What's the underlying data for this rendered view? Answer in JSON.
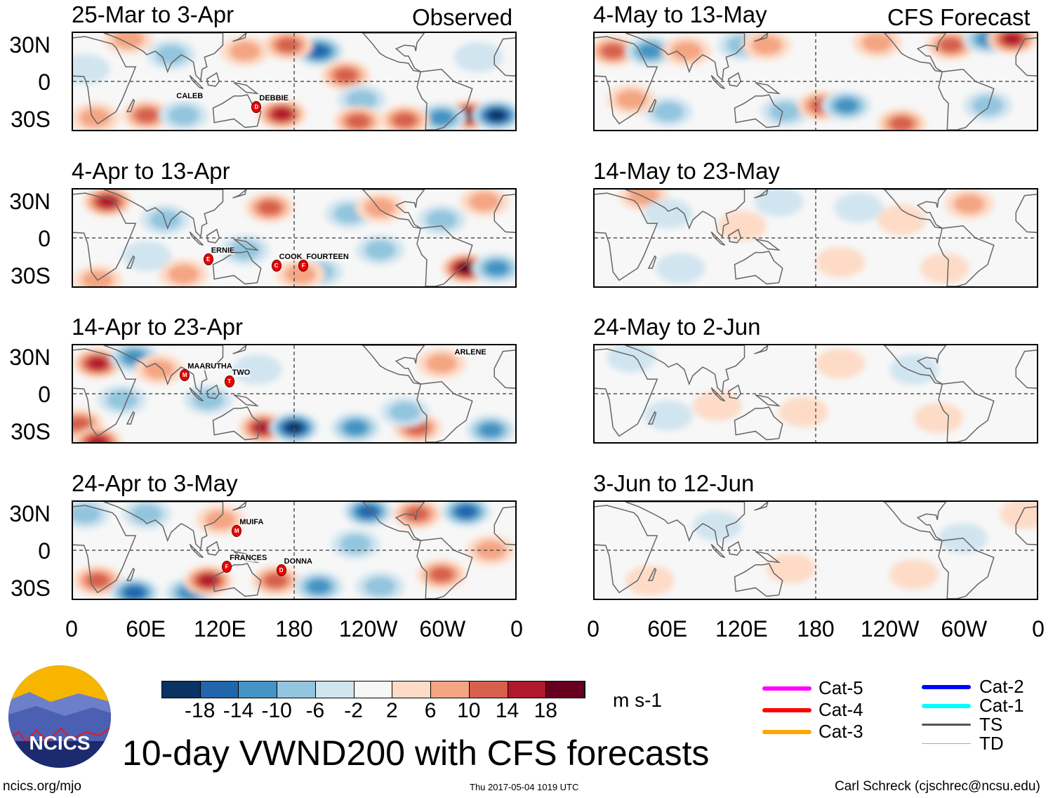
{
  "corner_left": "Observed",
  "corner_right": "CFS Forecast",
  "lat_labels": [
    "30N",
    "0",
    "30S"
  ],
  "lon_labels": [
    "0",
    "60E",
    "120E",
    "180",
    "120W",
    "60W",
    "0"
  ],
  "colorbar": {
    "colors": [
      "#0a3264",
      "#2166ac",
      "#4393c3",
      "#92c5de",
      "#d1e5f0",
      "#f7f7f7",
      "#fddbc7",
      "#f4a582",
      "#d6604d",
      "#b2182b",
      "#67001f"
    ],
    "labels": [
      "-18",
      "-14",
      "-10",
      "-6",
      "-2",
      "2",
      "6",
      "10",
      "14",
      "18"
    ],
    "units": "m s-1"
  },
  "legend": [
    {
      "label": "Cat-5",
      "color": "#ff00ff"
    },
    {
      "label": "Cat-4",
      "color": "#ff0000"
    },
    {
      "label": "Cat-3",
      "color": "#ffa500"
    },
    {
      "label": "Cat-2",
      "color": "#0000ff"
    },
    {
      "label": "Cat-1",
      "color": "#00ffff"
    },
    {
      "label": "TS",
      "color": "#555555"
    },
    {
      "label": "TD",
      "color": "#aaaaaa"
    }
  ],
  "title": "10-day VWND200 with CFS forecasts",
  "logo_text": "NCICS",
  "footer": {
    "left": "ncics.org/mjo",
    "center": "Thu 2017-05-04 1019 UTC",
    "right": "Carl Schreck (cjschrec@ncsu.edu)"
  },
  "chart_data": [
    {
      "type": "heatmap",
      "title": "25-Mar to 3-Apr",
      "source": "Observed",
      "blobs": [
        [
          80,
          22,
          -8
        ],
        [
          140,
          25,
          8
        ],
        [
          200,
          25,
          -14
        ],
        [
          222,
          5,
          10
        ],
        [
          235,
          -15,
          -6
        ],
        [
          232,
          -33,
          12
        ],
        [
          60,
          -28,
          10
        ],
        [
          90,
          -28,
          -8
        ],
        [
          170,
          -27,
          16
        ],
        [
          18,
          -30,
          8
        ],
        [
          322,
          -28,
          18
        ],
        [
          345,
          -28,
          -18
        ],
        [
          300,
          -30,
          -12
        ],
        [
          270,
          -32,
          12
        ],
        [
          45,
          35,
          6
        ],
        [
          330,
          20,
          -4
        ],
        [
          10,
          10,
          -2
        ],
        [
          175,
          30,
          12
        ]
      ],
      "storms": [
        {
          "name": "CALEB",
          "lon": 95,
          "lat": -13,
          "symbol": false
        },
        {
          "name": "DEBBIE",
          "lon": 149,
          "lat": -20,
          "symbol": true,
          "letter": "D"
        }
      ]
    },
    {
      "type": "heatmap",
      "title": "4-Apr to 13-Apr",
      "source": "Observed",
      "blobs": [
        [
          28,
          30,
          14
        ],
        [
          75,
          15,
          -6
        ],
        [
          160,
          25,
          10
        ],
        [
          225,
          20,
          -8
        ],
        [
          250,
          25,
          6
        ],
        [
          250,
          -10,
          -6
        ],
        [
          140,
          -10,
          -6
        ],
        [
          90,
          -30,
          8
        ],
        [
          200,
          -28,
          -8
        ],
        [
          320,
          -25,
          18
        ],
        [
          345,
          -25,
          -12
        ],
        [
          300,
          15,
          -8
        ],
        [
          335,
          30,
          8
        ],
        [
          20,
          -35,
          6
        ],
        [
          185,
          -30,
          8
        ],
        [
          60,
          -15,
          -4
        ]
      ],
      "storms": [
        {
          "name": "ERNIE",
          "lon": 110,
          "lat": -17,
          "symbol": true,
          "letter": "E"
        },
        {
          "name": "COOK",
          "lon": 165,
          "lat": -22,
          "symbol": true,
          "letter": "C"
        },
        {
          "name": "FOURTEEN",
          "lon": 187,
          "lat": -22,
          "symbol": true,
          "letter": "F"
        }
      ]
    },
    {
      "type": "heatmap",
      "title": "14-Apr to 23-Apr",
      "source": "Observed",
      "blobs": [
        [
          20,
          25,
          14
        ],
        [
          50,
          30,
          -12
        ],
        [
          70,
          20,
          6
        ],
        [
          150,
          20,
          -4
        ],
        [
          110,
          -5,
          -6
        ],
        [
          5,
          -25,
          12
        ],
        [
          40,
          -5,
          -8
        ],
        [
          155,
          -28,
          -12
        ],
        [
          155,
          -28,
          14
        ],
        [
          180,
          -28,
          -18
        ],
        [
          230,
          -28,
          -10
        ],
        [
          280,
          -28,
          10
        ],
        [
          340,
          -30,
          -12
        ],
        [
          20,
          -40,
          14
        ],
        [
          300,
          25,
          6
        ],
        [
          270,
          -15,
          -6
        ]
      ],
      "storms": [
        {
          "name": "MAARUTHA",
          "lon": 91,
          "lat": 15,
          "symbol": true,
          "letter": "M"
        },
        {
          "name": "TWO",
          "lon": 127,
          "lat": 10,
          "symbol": true,
          "letter": "T"
        },
        {
          "name": "ARLENE",
          "lon": 320,
          "lat": 32,
          "symbol": false
        }
      ]
    },
    {
      "type": "heatmap",
      "title": "24-Apr to 3-May",
      "source": "Observed",
      "blobs": [
        [
          10,
          30,
          -6
        ],
        [
          60,
          30,
          -8
        ],
        [
          120,
          25,
          6
        ],
        [
          240,
          32,
          -14
        ],
        [
          320,
          32,
          -14
        ],
        [
          280,
          30,
          10
        ],
        [
          20,
          -25,
          12
        ],
        [
          50,
          -35,
          -14
        ],
        [
          95,
          -35,
          -12
        ],
        [
          110,
          -25,
          14
        ],
        [
          165,
          -25,
          12
        ],
        [
          200,
          -30,
          -10
        ],
        [
          250,
          -30,
          -8
        ],
        [
          300,
          -20,
          10
        ],
        [
          230,
          5,
          -6
        ],
        [
          340,
          0,
          6
        ]
      ],
      "storms": [
        {
          "name": "MUIFA",
          "lon": 133,
          "lat": 16,
          "symbol": true,
          "letter": "M"
        },
        {
          "name": "FRANCES",
          "lon": 125,
          "lat": -13,
          "symbol": true,
          "letter": "F"
        },
        {
          "name": "DONNA",
          "lon": 169,
          "lat": -16,
          "symbol": true,
          "letter": "D"
        }
      ]
    },
    {
      "type": "heatmap",
      "title": "4-May to 13-May",
      "source": "CFS Forecast",
      "blobs": [
        [
          15,
          25,
          12
        ],
        [
          45,
          25,
          -10
        ],
        [
          75,
          25,
          6
        ],
        [
          120,
          30,
          -6
        ],
        [
          140,
          30,
          6
        ],
        [
          230,
          32,
          6
        ],
        [
          290,
          30,
          10
        ],
        [
          320,
          35,
          -12
        ],
        [
          340,
          35,
          16
        ],
        [
          155,
          -25,
          -6
        ],
        [
          185,
          -20,
          10
        ],
        [
          205,
          -20,
          -10
        ],
        [
          60,
          -25,
          -6
        ],
        [
          250,
          -35,
          12
        ],
        [
          320,
          -20,
          -8
        ],
        [
          30,
          -15,
          6
        ]
      ],
      "storms": []
    },
    {
      "type": "heatmap",
      "title": "14-May to 23-May",
      "source": "CFS Forecast",
      "blobs": [
        [
          40,
          35,
          8
        ],
        [
          150,
          30,
          -4
        ],
        [
          60,
          20,
          -4
        ],
        [
          215,
          25,
          -4
        ],
        [
          250,
          15,
          4
        ],
        [
          305,
          28,
          6
        ],
        [
          70,
          -25,
          -4
        ],
        [
          200,
          -20,
          4
        ],
        [
          285,
          -25,
          4
        ],
        [
          120,
          10,
          4
        ]
      ],
      "storms": []
    },
    {
      "type": "heatmap",
      "title": "24-May to 2-Jun",
      "source": "CFS Forecast",
      "blobs": [
        [
          100,
          -10,
          4
        ],
        [
          60,
          -18,
          -3
        ],
        [
          170,
          -15,
          4
        ],
        [
          260,
          20,
          -3
        ],
        [
          200,
          25,
          3
        ],
        [
          280,
          -20,
          3
        ],
        [
          30,
          30,
          -3
        ]
      ],
      "storms": []
    },
    {
      "type": "heatmap",
      "title": "3-Jun to 12-Jun",
      "source": "CFS Forecast",
      "blobs": [
        [
          45,
          -25,
          4
        ],
        [
          160,
          -15,
          3
        ],
        [
          260,
          -20,
          3
        ],
        [
          300,
          10,
          -3
        ],
        [
          350,
          30,
          4
        ],
        [
          100,
          20,
          -3
        ]
      ],
      "storms": []
    }
  ]
}
